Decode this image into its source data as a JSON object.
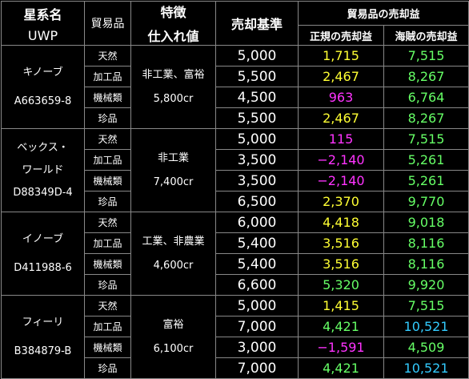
{
  "header": {
    "planet_name": "星系名",
    "uwp": "UWP",
    "goods": "貿易品",
    "trait": "特徴",
    "purchase_price": "仕入れ値",
    "sale_base": "売却基準",
    "profit_group": "貿易品の売却益",
    "legit_profit": "正規の売却益",
    "pirate_profit": "海賊の売却益"
  },
  "colors": {
    "yellow": "#ffff33",
    "magenta": "#ff33ff",
    "green": "#66ff66",
    "cyan": "#33ccff"
  },
  "planets": [
    {
      "name": "キノーブ",
      "uwp": "A663659-8",
      "trait": "非工業、富裕",
      "purchase": "5,800cr",
      "rows": [
        {
          "goods": "天然",
          "sale": "5,000",
          "legit": "1,715",
          "legit_color": "yellow",
          "pirate": "7,515",
          "pirate_color": "green"
        },
        {
          "goods": "加工品",
          "sale": "5,500",
          "legit": "2,467",
          "legit_color": "yellow",
          "pirate": "8,267",
          "pirate_color": "green"
        },
        {
          "goods": "機械類",
          "sale": "4,500",
          "legit": "963",
          "legit_color": "magenta",
          "pirate": "6,764",
          "pirate_color": "green"
        },
        {
          "goods": "珍品",
          "sale": "5,500",
          "legit": "2,467",
          "legit_color": "yellow",
          "pirate": "8,267",
          "pirate_color": "green"
        }
      ]
    },
    {
      "name": "ベックス・ワールド",
      "name_line1": "ベックス・",
      "name_line2": "ワールド",
      "uwp": "D88349D-4",
      "trait": "非工業",
      "purchase": "7,400cr",
      "rows": [
        {
          "goods": "天然",
          "sale": "5,000",
          "legit": "115",
          "legit_color": "magenta",
          "pirate": "7,515",
          "pirate_color": "green"
        },
        {
          "goods": "加工品",
          "sale": "3,500",
          "legit": "−2,140",
          "legit_color": "magenta",
          "pirate": "5,261",
          "pirate_color": "green"
        },
        {
          "goods": "機械類",
          "sale": "3,500",
          "legit": "−2,140",
          "legit_color": "magenta",
          "pirate": "5,261",
          "pirate_color": "green"
        },
        {
          "goods": "珍品",
          "sale": "6,500",
          "legit": "2,370",
          "legit_color": "yellow",
          "pirate": "9,770",
          "pirate_color": "green"
        }
      ]
    },
    {
      "name": "イノーブ",
      "uwp": "D411988-6",
      "trait": "工業、非農業",
      "purchase": "4,600cr",
      "rows": [
        {
          "goods": "天然",
          "sale": "6,000",
          "legit": "4,418",
          "legit_color": "yellow",
          "pirate": "9,018",
          "pirate_color": "green"
        },
        {
          "goods": "加工品",
          "sale": "5,400",
          "legit": "3,516",
          "legit_color": "yellow",
          "pirate": "8,116",
          "pirate_color": "green"
        },
        {
          "goods": "機械類",
          "sale": "5,400",
          "legit": "3,516",
          "legit_color": "yellow",
          "pirate": "8,116",
          "pirate_color": "green"
        },
        {
          "goods": "珍品",
          "sale": "6,600",
          "legit": "5,320",
          "legit_color": "green",
          "pirate": "9,920",
          "pirate_color": "green"
        }
      ]
    },
    {
      "name": "フィーリ",
      "uwp": "B384879-B",
      "trait": "富裕",
      "purchase": "6,100cr",
      "rows": [
        {
          "goods": "天然",
          "sale": "5,000",
          "legit": "1,415",
          "legit_color": "yellow",
          "pirate": "7,515",
          "pirate_color": "green"
        },
        {
          "goods": "加工品",
          "sale": "7,000",
          "legit": "4,421",
          "legit_color": "green",
          "pirate": "10,521",
          "pirate_color": "cyan"
        },
        {
          "goods": "機械類",
          "sale": "3,000",
          "legit": "−1,591",
          "legit_color": "magenta",
          "pirate": "4,509",
          "pirate_color": "green"
        },
        {
          "goods": "珍品",
          "sale": "7,000",
          "legit": "4,421",
          "legit_color": "green",
          "pirate": "10,521",
          "pirate_color": "cyan"
        }
      ]
    }
  ]
}
